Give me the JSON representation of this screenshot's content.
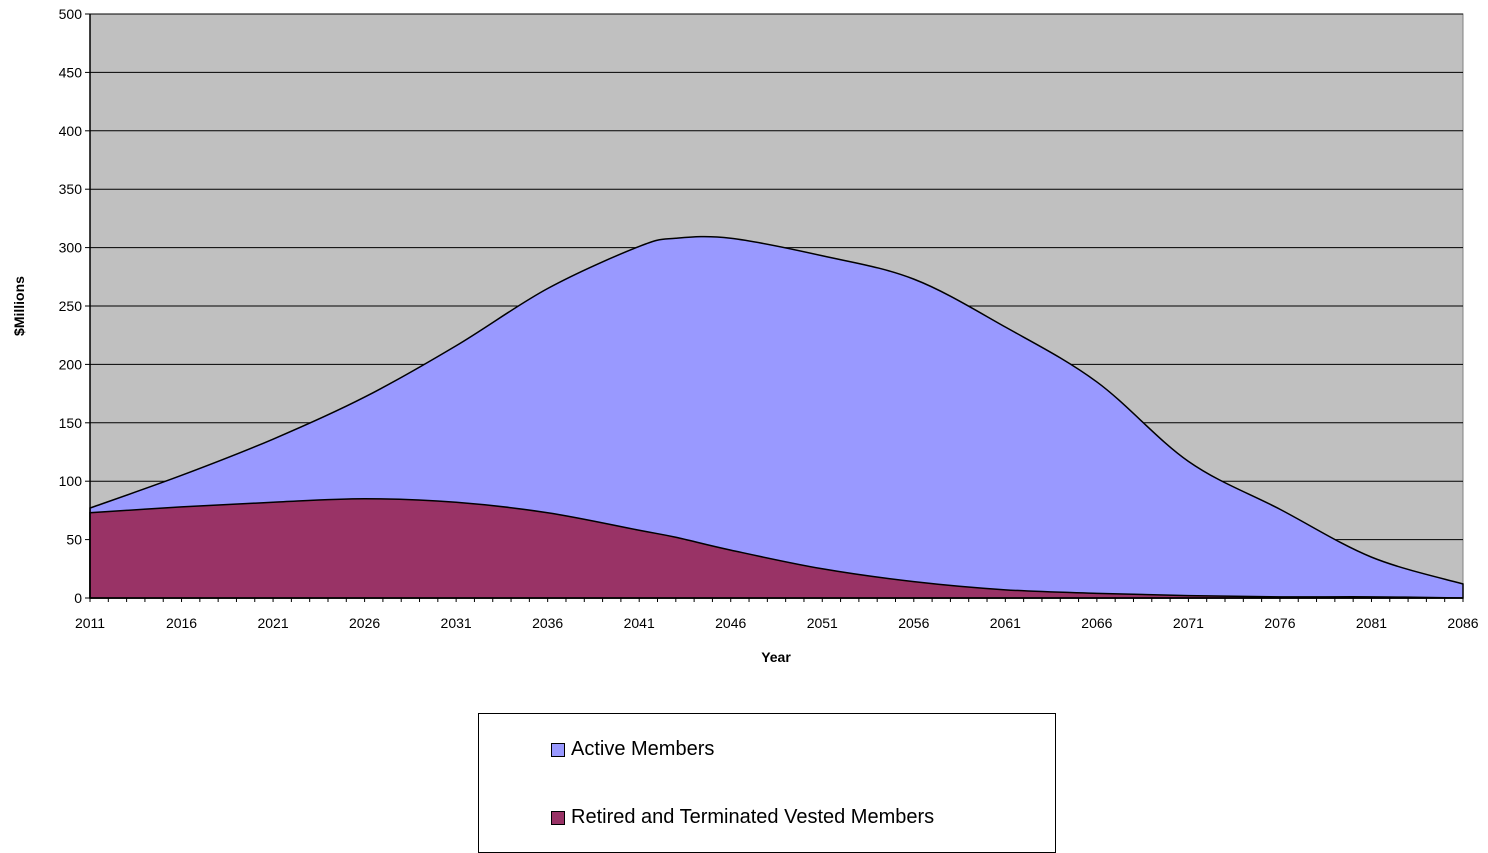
{
  "chart_data": {
    "type": "area",
    "stacked": true,
    "title": "",
    "xlabel": "Year",
    "ylabel": "$Millions",
    "ylim": [
      0,
      500
    ],
    "xlim": [
      2011,
      2086
    ],
    "yticks": [
      0,
      50,
      100,
      150,
      200,
      250,
      300,
      350,
      400,
      450,
      500
    ],
    "xticks": [
      2011,
      2016,
      2021,
      2026,
      2031,
      2036,
      2041,
      2046,
      2051,
      2056,
      2061,
      2066,
      2071,
      2076,
      2081,
      2086
    ],
    "grid": true,
    "legend_position": "bottom",
    "colors": {
      "plot_bg": "#C0C0C0",
      "active": "#9999FF",
      "retired": "#993366"
    },
    "x": [
      2011,
      2016,
      2021,
      2026,
      2031,
      2036,
      2041,
      2043,
      2046,
      2051,
      2056,
      2061,
      2066,
      2071,
      2076,
      2081,
      2086
    ],
    "series": [
      {
        "name": "Retired and Terminated Vested Members",
        "values": [
          73,
          78,
          82,
          85,
          82,
          73,
          58,
          52,
          41,
          25,
          14,
          7,
          4,
          2,
          1,
          1,
          0
        ]
      },
      {
        "name": "Active Members",
        "values": [
          4,
          27,
          54,
          87,
          134,
          192,
          243,
          256,
          267,
          268,
          259,
          225,
          181,
          115,
          75,
          34,
          12
        ]
      }
    ],
    "totals": [
      77,
      105,
      136,
      172,
      216,
      265,
      301,
      308,
      308,
      293,
      273,
      232,
      185,
      117,
      76,
      35,
      12
    ]
  }
}
